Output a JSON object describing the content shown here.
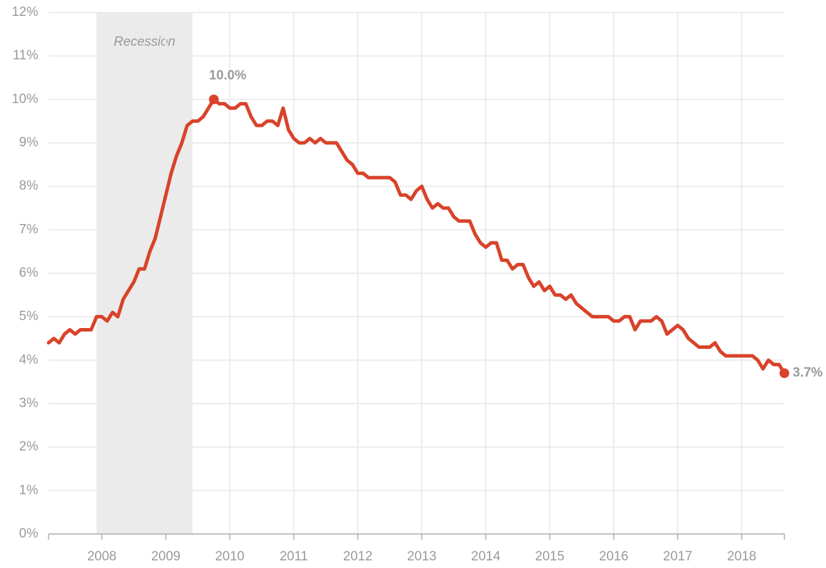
{
  "chart_data": {
    "type": "line",
    "recession": {
      "label": "Recession",
      "start": 2007.917,
      "end": 2009.417
    },
    "xlim": [
      2007.167,
      2018.667
    ],
    "xticks": [
      2008,
      2009,
      2010,
      2011,
      2012,
      2013,
      2014,
      2015,
      2016,
      2017,
      2018
    ],
    "ylim": [
      0,
      12
    ],
    "yticks": [
      {
        "value": 0,
        "label": "0%"
      },
      {
        "value": 1,
        "label": "1%"
      },
      {
        "value": 2,
        "label": "2%"
      },
      {
        "value": 3,
        "label": "3%"
      },
      {
        "value": 4,
        "label": "4%"
      },
      {
        "value": 5,
        "label": "5%"
      },
      {
        "value": 6,
        "label": "6%"
      },
      {
        "value": 7,
        "label": "7%"
      },
      {
        "value": 8,
        "label": "8%"
      },
      {
        "value": 9,
        "label": "9%"
      },
      {
        "value": 10,
        "label": "10%"
      },
      {
        "value": 11,
        "label": "11%"
      },
      {
        "value": 12,
        "label": "12%"
      }
    ],
    "grid": true,
    "color": "#d8432a",
    "x": [
      2007.167,
      2007.25,
      2007.333,
      2007.417,
      2007.5,
      2007.583,
      2007.667,
      2007.75,
      2007.833,
      2007.917,
      2008.0,
      2008.083,
      2008.167,
      2008.25,
      2008.333,
      2008.417,
      2008.5,
      2008.583,
      2008.667,
      2008.75,
      2008.833,
      2008.917,
      2009.0,
      2009.083,
      2009.167,
      2009.25,
      2009.333,
      2009.417,
      2009.5,
      2009.583,
      2009.667,
      2009.75,
      2009.833,
      2009.917,
      2010.0,
      2010.083,
      2010.167,
      2010.25,
      2010.333,
      2010.417,
      2010.5,
      2010.583,
      2010.667,
      2010.75,
      2010.833,
      2010.917,
      2011.0,
      2011.083,
      2011.167,
      2011.25,
      2011.333,
      2011.417,
      2011.5,
      2011.583,
      2011.667,
      2011.75,
      2011.833,
      2011.917,
      2012.0,
      2012.083,
      2012.167,
      2012.25,
      2012.333,
      2012.417,
      2012.5,
      2012.583,
      2012.667,
      2012.75,
      2012.833,
      2012.917,
      2013.0,
      2013.083,
      2013.167,
      2013.25,
      2013.333,
      2013.417,
      2013.5,
      2013.583,
      2013.667,
      2013.75,
      2013.833,
      2013.917,
      2014.0,
      2014.083,
      2014.167,
      2014.25,
      2014.333,
      2014.417,
      2014.5,
      2014.583,
      2014.667,
      2014.75,
      2014.833,
      2014.917,
      2015.0,
      2015.083,
      2015.167,
      2015.25,
      2015.333,
      2015.417,
      2015.5,
      2015.583,
      2015.667,
      2015.75,
      2015.833,
      2015.917,
      2016.0,
      2016.083,
      2016.167,
      2016.25,
      2016.333,
      2016.417,
      2016.5,
      2016.583,
      2016.667,
      2016.75,
      2016.833,
      2016.917,
      2017.0,
      2017.083,
      2017.167,
      2017.25,
      2017.333,
      2017.417,
      2017.5,
      2017.583,
      2017.667,
      2017.75,
      2017.833,
      2017.917,
      2018.0,
      2018.083,
      2018.167,
      2018.25,
      2018.333,
      2018.417,
      2018.5,
      2018.583,
      2018.667
    ],
    "values": [
      4.4,
      4.5,
      4.4,
      4.6,
      4.7,
      4.6,
      4.7,
      4.7,
      4.7,
      5.0,
      5.0,
      4.9,
      5.1,
      5.0,
      5.4,
      5.6,
      5.8,
      6.1,
      6.1,
      6.5,
      6.8,
      7.3,
      7.8,
      8.3,
      8.7,
      9.0,
      9.4,
      9.5,
      9.5,
      9.6,
      9.8,
      10.0,
      9.9,
      9.9,
      9.8,
      9.8,
      9.9,
      9.9,
      9.6,
      9.4,
      9.4,
      9.5,
      9.5,
      9.4,
      9.8,
      9.3,
      9.1,
      9.0,
      9.0,
      9.1,
      9.0,
      9.1,
      9.0,
      9.0,
      9.0,
      8.8,
      8.6,
      8.5,
      8.3,
      8.3,
      8.2,
      8.2,
      8.2,
      8.2,
      8.2,
      8.1,
      7.8,
      7.8,
      7.7,
      7.9,
      8.0,
      7.7,
      7.5,
      7.6,
      7.5,
      7.5,
      7.3,
      7.2,
      7.2,
      7.2,
      6.9,
      6.7,
      6.6,
      6.7,
      6.7,
      6.3,
      6.3,
      6.1,
      6.2,
      6.2,
      5.9,
      5.7,
      5.8,
      5.6,
      5.7,
      5.5,
      5.5,
      5.4,
      5.5,
      5.3,
      5.2,
      5.1,
      5.0,
      5.0,
      5.0,
      5.0,
      4.9,
      4.9,
      5.0,
      5.0,
      4.7,
      4.9,
      4.9,
      4.9,
      5.0,
      4.9,
      4.6,
      4.7,
      4.8,
      4.7,
      4.5,
      4.4,
      4.3,
      4.3,
      4.3,
      4.4,
      4.2,
      4.1,
      4.1,
      4.1,
      4.1,
      4.1,
      4.1,
      4.0,
      3.8,
      4.0,
      3.9,
      3.9,
      3.7
    ],
    "value_labels": [
      null,
      null,
      null,
      null,
      null,
      null,
      null,
      null,
      null,
      null,
      null,
      null,
      null,
      null,
      null,
      null,
      null,
      null,
      null,
      null,
      null,
      null,
      null,
      null,
      null,
      null,
      null,
      null,
      null,
      null,
      null,
      "10.0%",
      null,
      null,
      null,
      null,
      null,
      null,
      null,
      null,
      null,
      null,
      null,
      null,
      null,
      null,
      null,
      null,
      null,
      null,
      null,
      null,
      null,
      null,
      null,
      null,
      null,
      null,
      null,
      null,
      null,
      null,
      null,
      null,
      null,
      null,
      null,
      null,
      null,
      null,
      null,
      null,
      null,
      null,
      null,
      null,
      null,
      null,
      null,
      null,
      null,
      null,
      null,
      null,
      null,
      null,
      null,
      null,
      null,
      null,
      null,
      null,
      null,
      null,
      null,
      null,
      null,
      null,
      null,
      null,
      null,
      null,
      null,
      null,
      null,
      null,
      null,
      null,
      null,
      null,
      null,
      null,
      null,
      null,
      null,
      null,
      null,
      null,
      null,
      null,
      null,
      null,
      null,
      null,
      null,
      null,
      null,
      null,
      null,
      null,
      null,
      null,
      null,
      null,
      null,
      null,
      null,
      null,
      "3.7%"
    ]
  }
}
